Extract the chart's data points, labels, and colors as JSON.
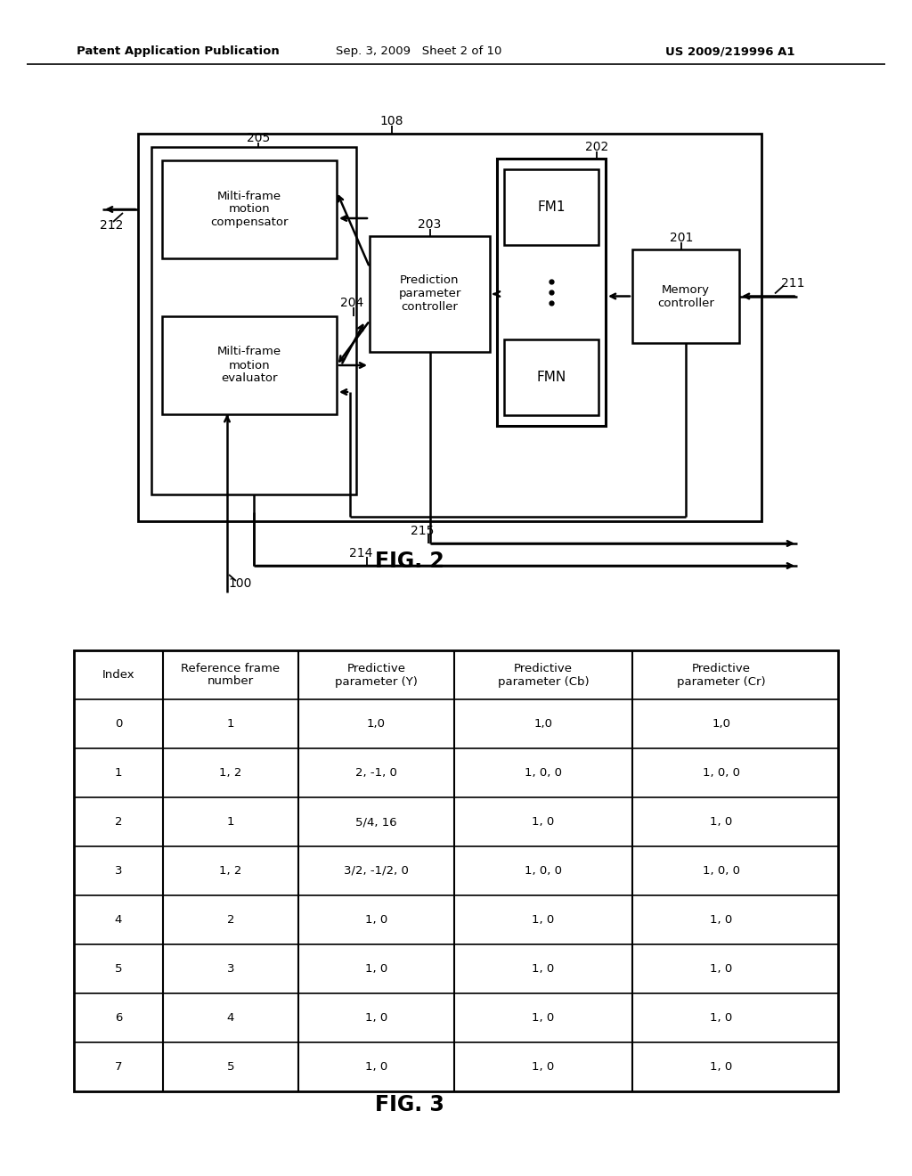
{
  "header_left": "Patent Application Publication",
  "header_center": "Sep. 3, 2009   Sheet 2 of 10",
  "header_right": "US 2009/219996 A1",
  "fig2_label": "FIG. 2",
  "fig3_label": "FIG. 3",
  "table_headers": [
    "Index",
    "Reference frame\nnumber",
    "Predictive\nparameter (Y)",
    "Predictive\nparameter (Cb)",
    "Predictive\nparameter (Cr)"
  ],
  "table_data": [
    [
      "0",
      "1",
      "1,0",
      "1,0",
      "1,0"
    ],
    [
      "1",
      "1, 2",
      "2, -1, 0",
      "1, 0, 0",
      "1, 0, 0"
    ],
    [
      "2",
      "1",
      "5/4, 16",
      "1, 0",
      "1, 0"
    ],
    [
      "3",
      "1, 2",
      "3/2, -1/2, 0",
      "1, 0, 0",
      "1, 0, 0"
    ],
    [
      "4",
      "2",
      "1, 0",
      "1, 0",
      "1, 0"
    ],
    [
      "5",
      "3",
      "1, 0",
      "1, 0",
      "1, 0"
    ],
    [
      "6",
      "4",
      "1, 0",
      "1, 0",
      "1, 0"
    ],
    [
      "7",
      "5",
      "1, 0",
      "1, 0",
      "1, 0"
    ]
  ],
  "bg_color": "#ffffff",
  "line_color": "#000000",
  "text_color": "#000000"
}
